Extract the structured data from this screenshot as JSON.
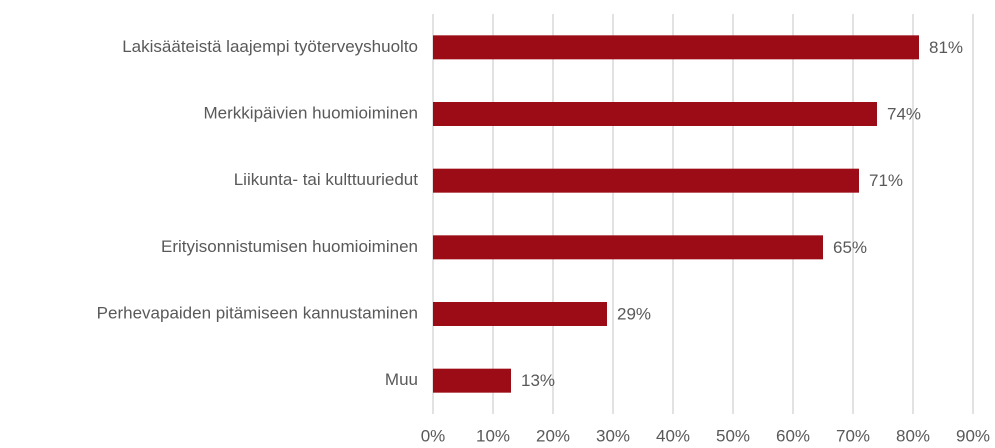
{
  "chart_data": {
    "type": "bar",
    "orientation": "horizontal",
    "categories": [
      "Lakisääteistä laajempi työterveyshuolto",
      "Merkkipäivien huomioiminen",
      "Liikunta- tai kulttuuriedut",
      "Erityisonnistumisen huomioiminen",
      "Perhevapaiden pitämiseen kannustaminen",
      "Muu"
    ],
    "values": [
      81,
      74,
      71,
      65,
      29,
      13
    ],
    "value_labels": [
      "81%",
      "74%",
      "71%",
      "65%",
      "29%",
      "13%"
    ],
    "color": "#9b0c16",
    "xlim": [
      0,
      90
    ],
    "xticks": [
      {
        "value": 0,
        "label": "0%"
      },
      {
        "value": 10,
        "label": "10%"
      },
      {
        "value": 20,
        "label": "20%"
      },
      {
        "value": 30,
        "label": "30%"
      },
      {
        "value": 40,
        "label": "40%"
      },
      {
        "value": 50,
        "label": "50%"
      },
      {
        "value": 60,
        "label": "60%"
      },
      {
        "value": 70,
        "label": "70%"
      },
      {
        "value": 80,
        "label": "80%"
      },
      {
        "value": 90,
        "label": "90%"
      }
    ],
    "grid": true
  }
}
